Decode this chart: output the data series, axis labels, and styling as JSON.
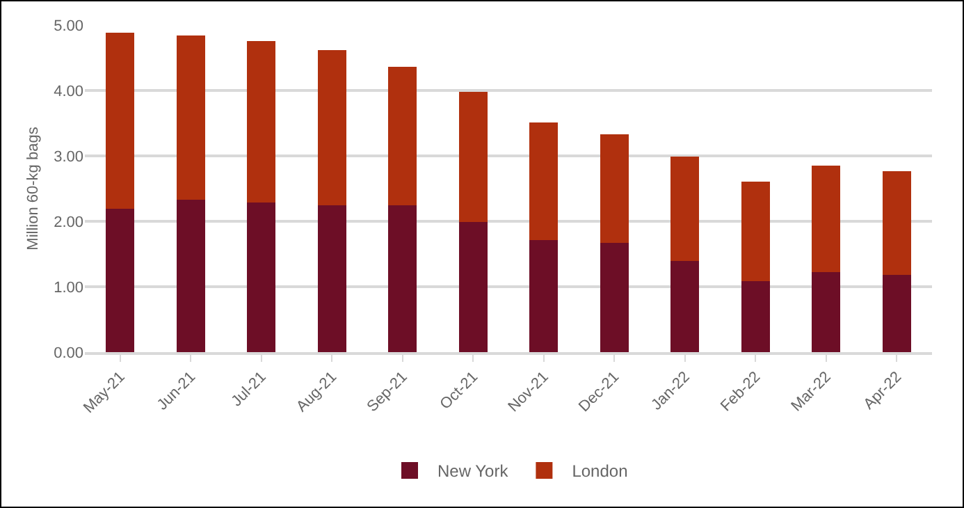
{
  "chart_data": {
    "type": "bar",
    "stacked": true,
    "ylabel": "Million 60-kg bags",
    "categories": [
      "May-21",
      "Jun-21",
      "Jul-21",
      "Aug-21",
      "Sep-21",
      "Oct-21",
      "Nov-21",
      "Dec-21",
      "Jan-22",
      "Feb-22",
      "Mar-22",
      "Apr-22"
    ],
    "series": [
      {
        "name": "New York",
        "color": "#6d0e26",
        "values": [
          2.19,
          2.33,
          2.29,
          2.25,
          2.25,
          1.99,
          1.71,
          1.67,
          1.39,
          1.08,
          1.22,
          1.18
        ]
      },
      {
        "name": "London",
        "color": "#b0300e",
        "values": [
          2.69,
          2.51,
          2.47,
          2.37,
          2.11,
          1.99,
          1.8,
          1.66,
          1.6,
          1.53,
          1.63,
          1.59
        ]
      }
    ],
    "ylim": [
      0,
      5
    ],
    "yticks": [
      {
        "value": 0,
        "label": "0.00"
      },
      {
        "value": 1,
        "label": "1.00"
      },
      {
        "value": 2,
        "label": "2.00"
      },
      {
        "value": 3,
        "label": "3.00"
      },
      {
        "value": 4,
        "label": "4.00"
      },
      {
        "value": 5,
        "label": "5.00"
      }
    ],
    "grid": "y",
    "legend": "bottom"
  }
}
